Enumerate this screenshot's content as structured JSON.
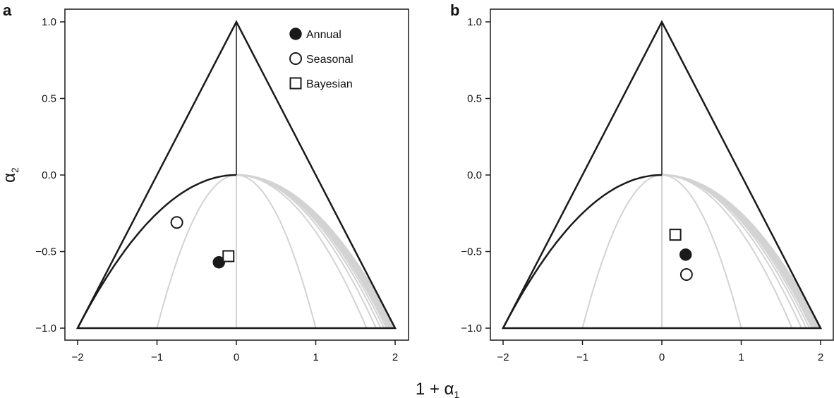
{
  "figure": {
    "xlabel_prefix": "1 + α",
    "xlabel_sub": "1",
    "ylabel_main": "α",
    "ylabel_sub": "2"
  },
  "colors": {
    "frame": "#1a1a1a",
    "curves": "#d3d3d3",
    "marker": "#1a1a1a"
  },
  "chart_data": [
    {
      "type": "scatter",
      "panel": "a",
      "xlim": [
        -2.2,
        2.2
      ],
      "ylim": [
        -1.08,
        1.08
      ],
      "x_ticks": [
        "−2",
        "−1",
        "0",
        "1",
        "2"
      ],
      "x_tick_values": [
        -2,
        -1,
        0,
        1,
        2
      ],
      "y_ticks": [
        "−1.0",
        "−0.5",
        "0.0",
        "0.5",
        "1.0"
      ],
      "y_tick_values": [
        -1.0,
        -0.5,
        0.0,
        0.5,
        1.0
      ],
      "legend": [
        {
          "label": "Annual",
          "marker": "filled-circle"
        },
        {
          "label": "Seasonal",
          "marker": "open-circle"
        },
        {
          "label": "Bayesian",
          "marker": "open-square"
        }
      ],
      "points": [
        {
          "series": "Annual",
          "x": -0.22,
          "y": -0.57
        },
        {
          "series": "Seasonal",
          "x": -0.75,
          "y": -0.31
        },
        {
          "series": "Bayesian",
          "x": -0.1,
          "y": -0.53
        }
      ]
    },
    {
      "type": "scatter",
      "panel": "b",
      "xlim": [
        -2.2,
        2.2
      ],
      "ylim": [
        -1.08,
        1.08
      ],
      "x_ticks": [
        "−2",
        "−1",
        "0",
        "1",
        "2"
      ],
      "x_tick_values": [
        -2,
        -1,
        0,
        1,
        2
      ],
      "y_ticks": [
        "−1.0",
        "−0.5",
        "0.0",
        "0.5",
        "1.0"
      ],
      "y_tick_values": [
        -1.0,
        -0.5,
        0.0,
        0.5,
        1.0
      ],
      "legend": [],
      "points": [
        {
          "series": "Annual",
          "x": 0.3,
          "y": -0.52
        },
        {
          "series": "Seasonal",
          "x": 0.31,
          "y": -0.65
        },
        {
          "series": "Bayesian",
          "x": 0.17,
          "y": -0.39
        }
      ]
    }
  ]
}
